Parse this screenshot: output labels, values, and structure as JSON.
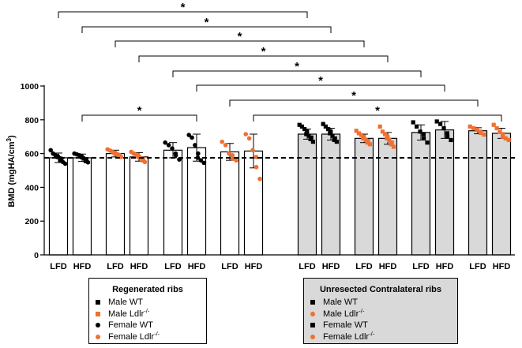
{
  "chart_data": {
    "type": "bar",
    "ylabel": "BMD (mgHA/cm",
    "ylabel_sup": "3",
    "ylabel_close": ")",
    "ylim": [
      0,
      1000
    ],
    "yticks": [
      "0",
      "200",
      "400",
      "600",
      "800",
      "1000"
    ],
    "reference_line": 575,
    "categories": [
      "LFD",
      "HFD",
      "LFD",
      "HFD",
      "LFD",
      "HFD",
      "LFD",
      "HFD",
      "LFD",
      "HFD",
      "LFD",
      "HFD",
      "LFD",
      "HFD",
      "LFD",
      "HFD"
    ],
    "bars": [
      {
        "diet": "LFD",
        "group": "Regenerated ribs",
        "sex_genotype": "Male WT",
        "value": 575,
        "sd": 28,
        "marker": "circle",
        "color": "#000000",
        "points": [
          620,
          600,
          590,
          585,
          580,
          575,
          570,
          560,
          550,
          540
        ]
      },
      {
        "diet": "HFD",
        "group": "Regenerated ribs",
        "sex_genotype": "Male WT",
        "value": 575,
        "sd": 22,
        "marker": "circle",
        "color": "#000000",
        "points": [
          600,
          595,
          590,
          582,
          578,
          572,
          565,
          555,
          548
        ]
      },
      {
        "diet": "LFD",
        "group": "Regenerated ribs",
        "sex_genotype": "Male Ldlr-/-",
        "value": 600,
        "sd": 20,
        "marker": "circle",
        "color": "#f07030",
        "points": [
          625,
          618,
          610,
          605,
          600,
          598,
          592,
          588,
          580
        ]
      },
      {
        "diet": "HFD",
        "group": "Regenerated ribs",
        "sex_genotype": "Male Ldlr-/-",
        "value": 580,
        "sd": 25,
        "marker": "circle",
        "color": "#f07030",
        "points": [
          610,
          600,
          592,
          585,
          580,
          575,
          568,
          560,
          550
        ]
      },
      {
        "diet": "LFD",
        "group": "Regenerated ribs",
        "sex_genotype": "Female WT",
        "value": 620,
        "sd": 45,
        "marker": "circle",
        "color": "#000000",
        "points": [
          665,
          650,
          630,
          600,
          590,
          565
        ]
      },
      {
        "diet": "HFD",
        "group": "Regenerated ribs",
        "sex_genotype": "Female WT",
        "value": 635,
        "sd": 80,
        "marker": "circle",
        "color": "#000000",
        "points": [
          710,
          695,
          650,
          600,
          575,
          560,
          545
        ]
      },
      {
        "diet": "LFD",
        "group": "Regenerated ribs",
        "sex_genotype": "Female Ldlr-/-",
        "value": 610,
        "sd": 50,
        "marker": "circle",
        "color": "#f07030",
        "points": [
          670,
          650,
          600,
          590,
          570,
          560
        ]
      },
      {
        "diet": "HFD",
        "group": "Regenerated ribs",
        "sex_genotype": "Female Ldlr-/-",
        "value": 615,
        "sd": 100,
        "marker": "circle",
        "color": "#f07030",
        "points": [
          715,
          690,
          620,
          580,
          520,
          450
        ]
      },
      {
        "diet": "LFD",
        "group": "Unresected Contralateral ribs",
        "sex_genotype": "Male WT",
        "value": 715,
        "sd": 30,
        "marker": "square",
        "color": "#000000",
        "points": [
          770,
          760,
          745,
          730,
          715,
          705,
          695,
          685,
          670
        ]
      },
      {
        "diet": "HFD",
        "group": "Unresected Contralateral ribs",
        "sex_genotype": "Male WT",
        "value": 715,
        "sd": 35,
        "marker": "square",
        "color": "#000000",
        "points": [
          775,
          760,
          745,
          730,
          720,
          705,
          690,
          680,
          670
        ]
      },
      {
        "diet": "LFD",
        "group": "Unresected Contralateral ribs",
        "sex_genotype": "Male Ldlr-/-",
        "value": 690,
        "sd": 25,
        "marker": "square",
        "color": "#f07030",
        "points": [
          735,
          720,
          710,
          700,
          690,
          680,
          675,
          665,
          655
        ]
      },
      {
        "diet": "HFD",
        "group": "Unresected Contralateral ribs",
        "sex_genotype": "Male Ldlr-/-",
        "value": 690,
        "sd": 35,
        "marker": "square",
        "color": "#f07030",
        "points": [
          760,
          730,
          715,
          700,
          690,
          680,
          665,
          655,
          640
        ]
      },
      {
        "diet": "LFD",
        "group": "Unresected Contralateral ribs",
        "sex_genotype": "Female WT",
        "value": 725,
        "sd": 45,
        "marker": "square",
        "color": "#000000",
        "points": [
          785,
          760,
          730,
          715,
          690,
          665
        ]
      },
      {
        "diet": "HFD",
        "group": "Unresected Contralateral ribs",
        "sex_genotype": "Female WT",
        "value": 740,
        "sd": 50,
        "marker": "square",
        "color": "#000000",
        "points": [
          790,
          775,
          750,
          720,
          700,
          680
        ]
      },
      {
        "diet": "LFD",
        "group": "Unresected Contralateral ribs",
        "sex_genotype": "Female Ldlr-/-",
        "value": 735,
        "sd": 18,
        "marker": "square",
        "color": "#f07030",
        "points": [
          760,
          750,
          740,
          730,
          722,
          712
        ]
      },
      {
        "diet": "HFD",
        "group": "Unresected Contralateral ribs",
        "sex_genotype": "Female Ldlr-/-",
        "value": 720,
        "sd": 30,
        "marker": "square",
        "color": "#f07030",
        "points": [
          770,
          750,
          730,
          715,
          700,
          690,
          680
        ]
      }
    ],
    "significance": [
      {
        "from": 0,
        "to": 8,
        "label": "*"
      },
      {
        "from": 1,
        "to": 9,
        "label": "*"
      },
      {
        "from": 2,
        "to": 10,
        "label": "*"
      },
      {
        "from": 3,
        "to": 11,
        "label": "*"
      },
      {
        "from": 4,
        "to": 12,
        "label": "*"
      },
      {
        "from": 5,
        "to": 13,
        "label": "*"
      },
      {
        "from": 6,
        "to": 14,
        "label": "*"
      },
      {
        "from": 7,
        "to": 15,
        "label": "*"
      },
      {
        "from": 1,
        "to": 5,
        "label": "*"
      }
    ]
  },
  "legends": [
    {
      "title": "Regenerated ribs",
      "items": [
        {
          "label": "Male WT",
          "sup": "",
          "marker": "square",
          "color": "#000000"
        },
        {
          "label": "Male Ldlr",
          "sup": "-/-",
          "marker": "square",
          "color": "#f07030"
        },
        {
          "label": "Female WT",
          "sup": "",
          "marker": "circle",
          "color": "#000000"
        },
        {
          "label": "Female Ldlr",
          "sup": "-/-",
          "marker": "circle",
          "color": "#f07030"
        }
      ]
    },
    {
      "title": "Unresected Contralateral ribs",
      "items": [
        {
          "label": "Male WT",
          "sup": "",
          "marker": "square",
          "color": "#000000"
        },
        {
          "label": "Male Ldlr",
          "sup": "-/-",
          "marker": "circle",
          "color": "#f07030"
        },
        {
          "label": "Female WT",
          "sup": "",
          "marker": "square",
          "color": "#000000"
        },
        {
          "label": "Female Ldlr",
          "sup": "-/-",
          "marker": "circle",
          "color": "#f07030"
        }
      ]
    }
  ]
}
